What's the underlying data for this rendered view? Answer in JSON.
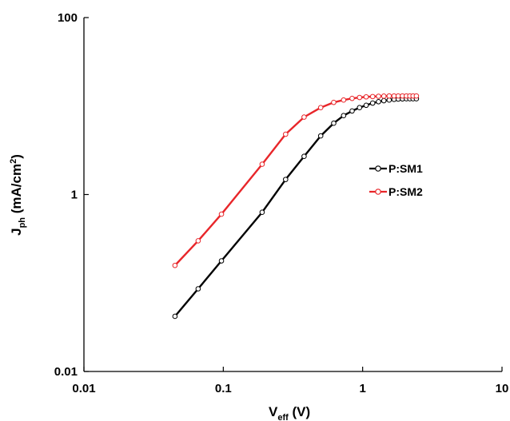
{
  "chart_data": {
    "type": "line",
    "xlabel": "V",
    "xlabel_sub": "eff",
    "xlabel_unit": " (V)",
    "ylabel": "J",
    "ylabel_sub": "ph",
    "ylabel_unit": " (mA/cm",
    "ylabel_sup": "2",
    "ylabel_end": ")",
    "x_scale": "log",
    "y_scale": "log",
    "xlim": [
      0.01,
      10
    ],
    "ylim": [
      0.01,
      100
    ],
    "x_ticks": [
      0.01,
      0.1,
      1,
      10
    ],
    "x_tick_labels": [
      "0.01",
      "0.1",
      "1",
      "10"
    ],
    "y_ticks": [
      0.01,
      1,
      100
    ],
    "y_tick_labels": [
      "0.01",
      "1",
      "100"
    ],
    "grid": false,
    "legend_position": "right-middle",
    "series": [
      {
        "name": "P:SM1",
        "color": "#000000",
        "marker": "open-circle",
        "points": [
          [
            0.045,
            0.042
          ],
          [
            0.066,
            0.086
          ],
          [
            0.097,
            0.178
          ],
          [
            0.19,
            0.63
          ],
          [
            0.28,
            1.48
          ],
          [
            0.38,
            2.7
          ],
          [
            0.5,
            4.6
          ],
          [
            0.62,
            6.4
          ],
          [
            0.73,
            7.8
          ],
          [
            0.84,
            8.8
          ],
          [
            0.95,
            9.6
          ],
          [
            1.06,
            10.2
          ],
          [
            1.18,
            10.8
          ],
          [
            1.3,
            11.2
          ],
          [
            1.42,
            11.5
          ],
          [
            1.55,
            11.7
          ],
          [
            1.68,
            11.9
          ],
          [
            1.8,
            12.0
          ],
          [
            1.93,
            12.05
          ],
          [
            2.06,
            12.1
          ],
          [
            2.18,
            12.1
          ],
          [
            2.3,
            12.1
          ],
          [
            2.43,
            12.1
          ]
        ]
      },
      {
        "name": "P:SM2",
        "color": "#e8262a",
        "marker": "open-circle",
        "points": [
          [
            0.045,
            0.158
          ],
          [
            0.066,
            0.3
          ],
          [
            0.097,
            0.6
          ],
          [
            0.19,
            2.2
          ],
          [
            0.28,
            4.8
          ],
          [
            0.38,
            7.5
          ],
          [
            0.5,
            9.6
          ],
          [
            0.62,
            11.0
          ],
          [
            0.73,
            11.7
          ],
          [
            0.84,
            12.2
          ],
          [
            0.95,
            12.5
          ],
          [
            1.06,
            12.7
          ],
          [
            1.18,
            12.8
          ],
          [
            1.3,
            12.9
          ],
          [
            1.42,
            12.95
          ],
          [
            1.55,
            13.0
          ],
          [
            1.68,
            13.0
          ],
          [
            1.8,
            13.0
          ],
          [
            1.93,
            13.0
          ],
          [
            2.06,
            13.0
          ],
          [
            2.18,
            13.0
          ],
          [
            2.3,
            13.0
          ],
          [
            2.43,
            13.0
          ]
        ]
      }
    ]
  }
}
